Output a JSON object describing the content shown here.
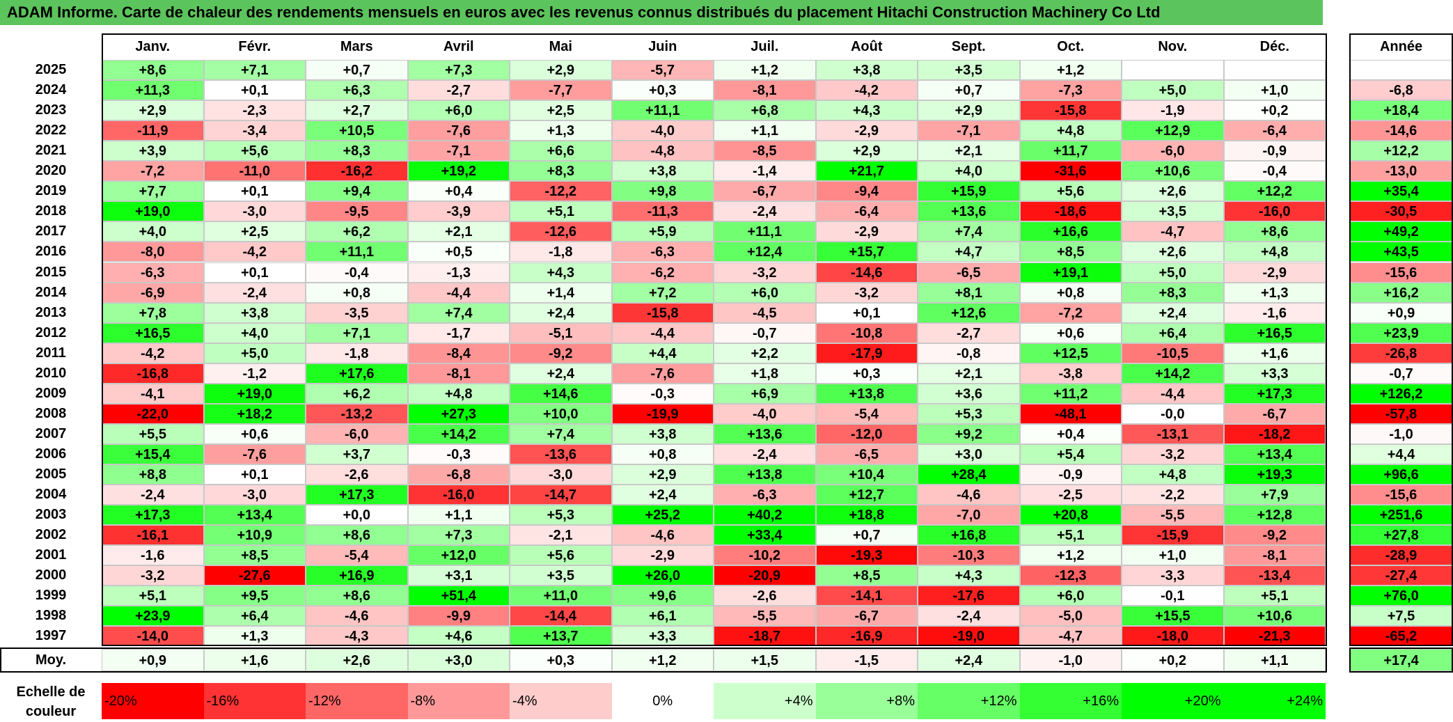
{
  "title": "ADAM Informe. Carte de chaleur des rendements mensuels en euros avec les revenus connus distribués du placement Hitachi Construction Machinery Co Ltd",
  "colors": {
    "title_bg": "#5cc45c",
    "negative": "#ff0000",
    "neutral": "#ffffff",
    "positive": "#00ff00"
  },
  "chart_data": {
    "type": "heatmap",
    "title": "ADAM Informe. Carte de chaleur des rendements mensuels en euros avec les revenus connus distribués du placement Hitachi Construction Machinery Co Ltd",
    "months": [
      "Janv.",
      "Févr.",
      "Mars",
      "Avril",
      "Mai",
      "Juin",
      "Juil.",
      "Août",
      "Sept.",
      "Oct.",
      "Nov.",
      "Déc."
    ],
    "annual_label": "Année",
    "avg_label": "Moy.",
    "rows": [
      {
        "year": "2025",
        "values": [
          "+8,6",
          "+7,1",
          "+0,7",
          "+7,3",
          "+2,9",
          "-5,7",
          "+1,2",
          "+3,8",
          "+3,5",
          "+1,2",
          "",
          ""
        ],
        "annual": ""
      },
      {
        "year": "2024",
        "values": [
          "+11,3",
          "+0,1",
          "+6,3",
          "-2,7",
          "-7,7",
          "+0,3",
          "-8,1",
          "-4,2",
          "+0,7",
          "-7,3",
          "+5,0",
          "+1,0"
        ],
        "annual": "-6,8"
      },
      {
        "year": "2023",
        "values": [
          "+2,9",
          "-2,3",
          "+2,7",
          "+6,0",
          "+2,5",
          "+11,1",
          "+6,8",
          "+4,3",
          "+2,9",
          "-15,8",
          "-1,9",
          "+0,2"
        ],
        "annual": "+18,4"
      },
      {
        "year": "2022",
        "values": [
          "-11,9",
          "-3,4",
          "+10,5",
          "-7,6",
          "+1,3",
          "-4,0",
          "+1,1",
          "-2,9",
          "-7,1",
          "+4,8",
          "+12,9",
          "-6,4"
        ],
        "annual": "-14,6"
      },
      {
        "year": "2021",
        "values": [
          "+3,9",
          "+5,6",
          "+8,3",
          "-7,1",
          "+6,6",
          "-4,8",
          "-8,5",
          "+2,9",
          "+2,1",
          "+11,7",
          "-6,0",
          "-0,9"
        ],
        "annual": "+12,2"
      },
      {
        "year": "2020",
        "values": [
          "-7,2",
          "-11,0",
          "-16,2",
          "+19,2",
          "+8,3",
          "+3,8",
          "-1,4",
          "+21,7",
          "+4,0",
          "-31,6",
          "+10,6",
          "-0,4"
        ],
        "annual": "-13,0"
      },
      {
        "year": "2019",
        "values": [
          "+7,7",
          "+0,1",
          "+9,4",
          "+0,4",
          "-12,2",
          "+9,8",
          "-6,7",
          "-9,4",
          "+15,9",
          "+5,6",
          "+2,6",
          "+12,2"
        ],
        "annual": "+35,4"
      },
      {
        "year": "2018",
        "values": [
          "+19,0",
          "-3,0",
          "-9,5",
          "-3,9",
          "+5,1",
          "-11,3",
          "-2,4",
          "-6,4",
          "+13,6",
          "-18,6",
          "+3,5",
          "-16,0"
        ],
        "annual": "-30,5"
      },
      {
        "year": "2017",
        "values": [
          "+4,0",
          "+2,5",
          "+6,2",
          "+2,1",
          "-12,6",
          "+5,9",
          "+11,1",
          "-2,9",
          "+7,4",
          "+16,6",
          "-4,7",
          "+8,6"
        ],
        "annual": "+49,2"
      },
      {
        "year": "2016",
        "values": [
          "-8,0",
          "-4,2",
          "+11,1",
          "+0,5",
          "-1,8",
          "-6,3",
          "+12,4",
          "+15,7",
          "+4,7",
          "+8,5",
          "+2,6",
          "+4,8"
        ],
        "annual": "+43,5"
      },
      {
        "year": "2015",
        "values": [
          "-6,3",
          "+0,1",
          "-0,4",
          "-1,3",
          "+4,3",
          "-6,2",
          "-3,2",
          "-14,6",
          "-6,5",
          "+19,1",
          "+5,0",
          "-2,9"
        ],
        "annual": "-15,6"
      },
      {
        "year": "2014",
        "values": [
          "-6,9",
          "-2,4",
          "+0,8",
          "-4,4",
          "+1,4",
          "+7,2",
          "+6,0",
          "-3,2",
          "+8,1",
          "+0,8",
          "+8,3",
          "+1,3"
        ],
        "annual": "+16,2"
      },
      {
        "year": "2013",
        "values": [
          "+7,8",
          "+3,8",
          "-3,5",
          "+7,4",
          "+2,4",
          "-15,8",
          "-4,5",
          "+0,1",
          "+12,6",
          "-7,2",
          "+2,4",
          "-1,6"
        ],
        "annual": "+0,9"
      },
      {
        "year": "2012",
        "values": [
          "+16,5",
          "+4,0",
          "+7,1",
          "-1,7",
          "-5,1",
          "-4,4",
          "-0,7",
          "-10,8",
          "-2,7",
          "+0,6",
          "+6,4",
          "+16,5"
        ],
        "annual": "+23,9"
      },
      {
        "year": "2011",
        "values": [
          "-4,2",
          "+5,0",
          "-1,8",
          "-8,4",
          "-9,2",
          "+4,4",
          "+2,2",
          "-17,9",
          "-0,8",
          "+12,5",
          "-10,5",
          "+1,6"
        ],
        "annual": "-26,8"
      },
      {
        "year": "2010",
        "values": [
          "-16,8",
          "-1,2",
          "+17,6",
          "-8,1",
          "+2,4",
          "-7,6",
          "+1,8",
          "+0,3",
          "+2,1",
          "-3,8",
          "+14,2",
          "+3,3"
        ],
        "annual": "-0,7"
      },
      {
        "year": "2009",
        "values": [
          "-4,1",
          "+19,0",
          "+6,2",
          "+4,8",
          "+14,6",
          "-0,3",
          "+6,9",
          "+13,8",
          "+3,6",
          "+11,2",
          "-4,4",
          "+17,3"
        ],
        "annual": "+126,2"
      },
      {
        "year": "2008",
        "values": [
          "-22,0",
          "+18,2",
          "-13,2",
          "+27,3",
          "+10,0",
          "-19,9",
          "-4,0",
          "-5,4",
          "+5,3",
          "-48,1",
          "-0,0",
          "-6,7"
        ],
        "annual": "-57,8"
      },
      {
        "year": "2007",
        "values": [
          "+5,5",
          "+0,6",
          "-6,0",
          "+14,2",
          "+7,4",
          "+3,8",
          "+13,6",
          "-12,0",
          "+9,2",
          "+0,4",
          "-13,1",
          "-18,2"
        ],
        "annual": "-1,0"
      },
      {
        "year": "2006",
        "values": [
          "+15,4",
          "-7,6",
          "+3,7",
          "-0,3",
          "-13,6",
          "+0,8",
          "-2,4",
          "-6,5",
          "+3,0",
          "+5,4",
          "-3,2",
          "+13,4"
        ],
        "annual": "+4,4"
      },
      {
        "year": "2005",
        "values": [
          "+8,8",
          "+0,1",
          "-2,6",
          "-6,8",
          "-3,0",
          "+2,9",
          "+13,8",
          "+10,4",
          "+28,4",
          "-0,9",
          "+4,8",
          "+19,3"
        ],
        "annual": "+96,6"
      },
      {
        "year": "2004",
        "values": [
          "-2,4",
          "-3,0",
          "+17,3",
          "-16,0",
          "-14,7",
          "+2,4",
          "-6,3",
          "+12,7",
          "-4,6",
          "-2,5",
          "-2,2",
          "+7,9"
        ],
        "annual": "-15,6"
      },
      {
        "year": "2003",
        "values": [
          "+17,3",
          "+13,4",
          "+0,0",
          "+1,1",
          "+5,3",
          "+25,2",
          "+40,2",
          "+18,8",
          "-7,0",
          "+20,8",
          "-5,5",
          "+12,8"
        ],
        "annual": "+251,6"
      },
      {
        "year": "2002",
        "values": [
          "-16,1",
          "+10,9",
          "+8,6",
          "+7,3",
          "-2,1",
          "-4,6",
          "+33,4",
          "+0,7",
          "+16,8",
          "+5,1",
          "-15,9",
          "-9,2"
        ],
        "annual": "+27,8"
      },
      {
        "year": "2001",
        "values": [
          "-1,6",
          "+8,5",
          "-5,4",
          "+12,0",
          "+5,6",
          "-2,9",
          "-10,2",
          "-19,3",
          "-10,3",
          "+1,2",
          "+1,0",
          "-8,1"
        ],
        "annual": "-28,9"
      },
      {
        "year": "2000",
        "values": [
          "-3,2",
          "-27,6",
          "+16,9",
          "+3,1",
          "+3,5",
          "+26,0",
          "-20,9",
          "+8,5",
          "+4,3",
          "-12,3",
          "-3,3",
          "-13,4"
        ],
        "annual": "-27,4"
      },
      {
        "year": "1999",
        "values": [
          "+5,1",
          "+9,5",
          "+8,6",
          "+51,4",
          "+11,0",
          "+9,6",
          "-2,6",
          "-14,1",
          "-17,6",
          "+6,0",
          "-0,1",
          "+5,1"
        ],
        "annual": "+76,0"
      },
      {
        "year": "1998",
        "values": [
          "+23,9",
          "+6,4",
          "-4,6",
          "-9,9",
          "-14,4",
          "+6,1",
          "-5,5",
          "-6,7",
          "-2,4",
          "-5,0",
          "+15,5",
          "+10,6"
        ],
        "annual": "+7,5"
      },
      {
        "year": "1997",
        "values": [
          "-14,0",
          "+1,3",
          "-4,3",
          "+4,6",
          "+13,7",
          "+3,3",
          "-18,7",
          "-16,9",
          "-19,0",
          "-4,7",
          "-18,0",
          "-21,3"
        ],
        "annual": "-65,2"
      }
    ],
    "averages": [
      "+0,9",
      "+1,6",
      "+2,6",
      "+3,0",
      "+0,3",
      "+1,2",
      "+1,5",
      "-1,5",
      "+2,4",
      "-1,0",
      "+0,2",
      "+1,1"
    ],
    "average_annual": "+17,4",
    "scale_label": "Echelle de couleur",
    "scale": [
      {
        "label": "-20%",
        "value": -20
      },
      {
        "label": "-16%",
        "value": -16
      },
      {
        "label": "-12%",
        "value": -12
      },
      {
        "label": "-8%",
        "value": -8
      },
      {
        "label": "-4%",
        "value": -4
      },
      {
        "label": "0%",
        "value": 0
      },
      {
        "label": "+4%",
        "value": 4
      },
      {
        "label": "+8%",
        "value": 8
      },
      {
        "label": "+12%",
        "value": 12
      },
      {
        "label": "+16%",
        "value": 16
      },
      {
        "label": "+20%",
        "value": 20
      },
      {
        "label": "+24%",
        "value": 24
      }
    ]
  }
}
